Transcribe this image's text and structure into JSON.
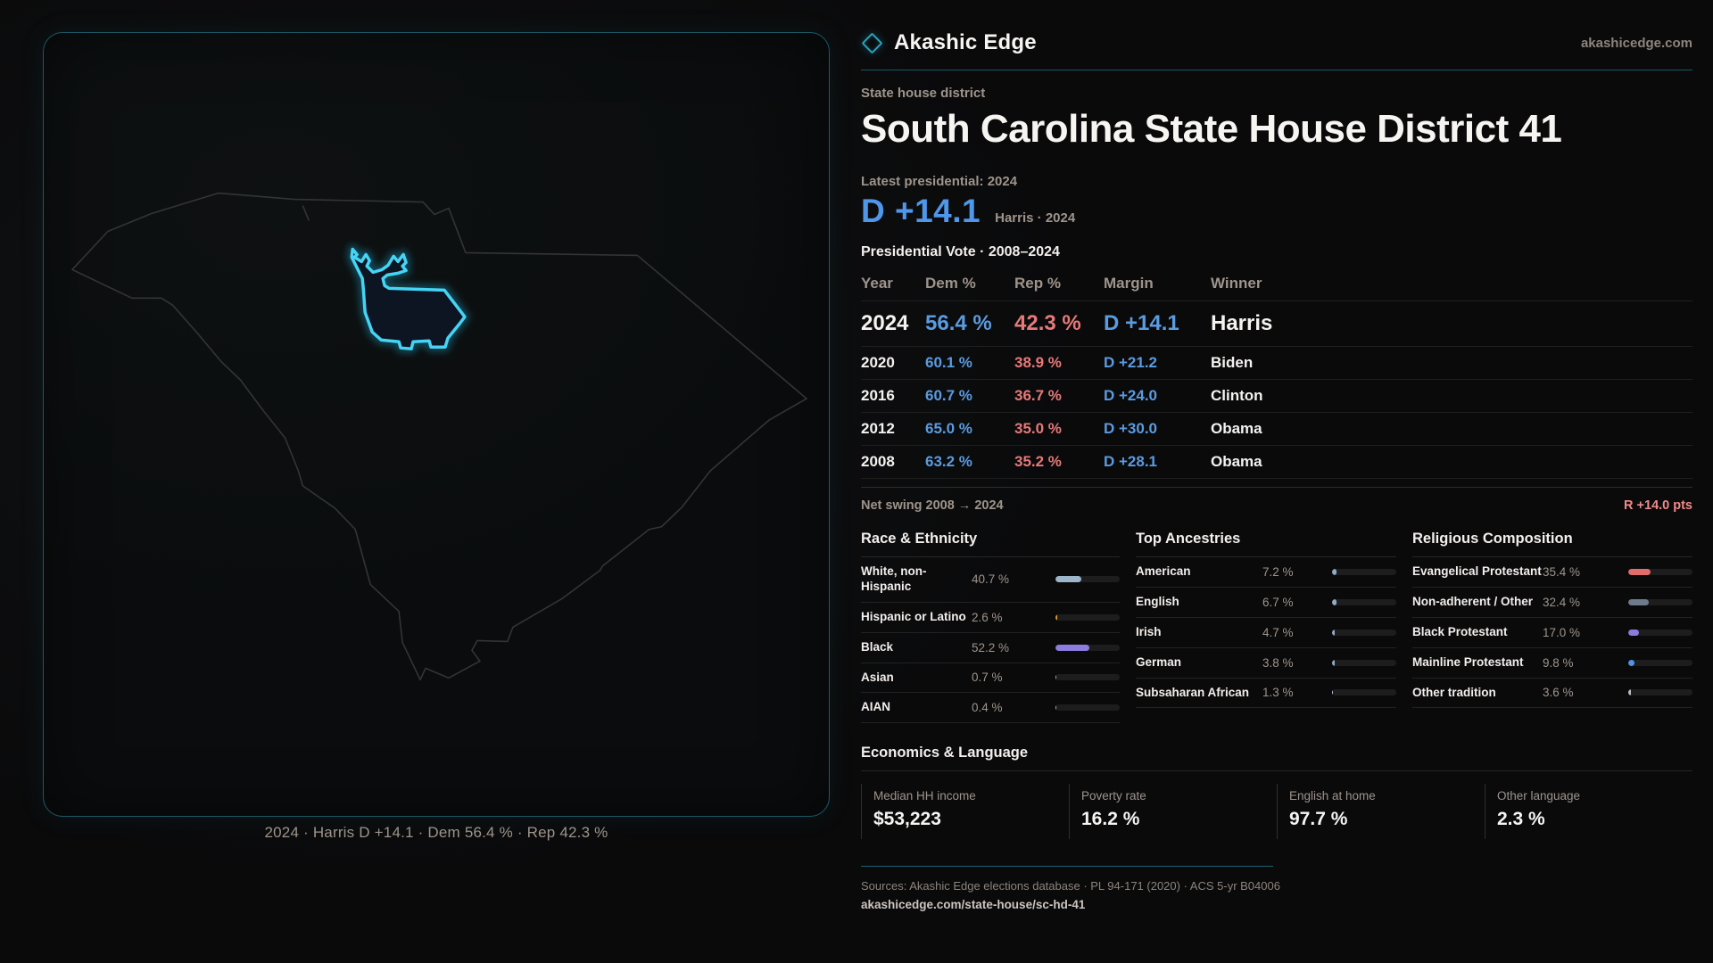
{
  "colors": {
    "background": "#0a0a0b",
    "accent_teal": "#2aa3bf",
    "district_cyan": "#45d4f5",
    "dem_blue": "#4e97ea",
    "rep_red": "#e77979",
    "swing_red": "#f08a8a",
    "text_muted": "#9e948b"
  },
  "brand": {
    "name": "Akashic Edge",
    "site": "akashicedge.com",
    "logo_icon": "diamond-outline-icon"
  },
  "header": {
    "kicker": "State house district",
    "title": "South Carolina State House District 41"
  },
  "latest": {
    "label": "Latest presidential: 2024",
    "margin": "D +14.1",
    "detail": "Harris · 2024"
  },
  "table": {
    "title": "Presidential Vote · 2008–2024",
    "columns": [
      "Year",
      "Dem %",
      "Rep %",
      "Margin",
      "Winner"
    ],
    "rows": [
      {
        "year": "2024",
        "dem": "56.4 %",
        "rep": "42.3 %",
        "margin": "D +14.1",
        "winner": "Harris",
        "featured": true
      },
      {
        "year": "2020",
        "dem": "60.1 %",
        "rep": "38.9 %",
        "margin": "D +21.2",
        "winner": "Biden"
      },
      {
        "year": "2016",
        "dem": "60.7 %",
        "rep": "36.7 %",
        "margin": "D +24.0",
        "winner": "Clinton"
      },
      {
        "year": "2012",
        "dem": "65.0 %",
        "rep": "35.0 %",
        "margin": "D +30.0",
        "winner": "Obama"
      },
      {
        "year": "2008",
        "dem": "63.2 %",
        "rep": "35.2 %",
        "margin": "D +28.1",
        "winner": "Obama"
      }
    ],
    "net_swing_label": "Net swing 2008 → 2024",
    "net_swing_value": "R +14.0 pts"
  },
  "demographics": {
    "race": {
      "title": "Race & Ethnicity",
      "rows": [
        {
          "label": "White, non-Hispanic",
          "display": "40.7 %",
          "value": 40.7,
          "color": "#9db5c9"
        },
        {
          "label": "Hispanic or Latino",
          "display": "2.6 %",
          "value": 2.6,
          "color": "#e09b2d"
        },
        {
          "label": "Black",
          "display": "52.2 %",
          "value": 52.2,
          "color": "#8d7ce0"
        },
        {
          "label": "Asian",
          "display": "0.7 %",
          "value": 0.7,
          "color": "#9db5c9"
        },
        {
          "label": "AIAN",
          "display": "0.4 %",
          "value": 0.4,
          "color": "#9db5c9"
        }
      ]
    },
    "ancestry": {
      "title": "Top Ancestries",
      "rows": [
        {
          "label": "American",
          "display": "7.2 %",
          "value": 7.2,
          "color": "#8fa9c6"
        },
        {
          "label": "English",
          "display": "6.7 %",
          "value": 6.7,
          "color": "#8fa9c6"
        },
        {
          "label": "Irish",
          "display": "4.7 %",
          "value": 4.7,
          "color": "#8fa9c6"
        },
        {
          "label": "German",
          "display": "3.8 %",
          "value": 3.8,
          "color": "#8fa9c6"
        },
        {
          "label": "Subsaharan African",
          "display": "1.3 %",
          "value": 1.3,
          "color": "#b8c4e8"
        }
      ]
    },
    "religion": {
      "title": "Religious Composition",
      "rows": [
        {
          "label": "Evangelical Protestant",
          "display": "35.4 %",
          "value": 35.4,
          "color": "#e06c6c"
        },
        {
          "label": "Non-adherent / Other",
          "display": "32.4 %",
          "value": 32.4,
          "color": "#6e7a8e"
        },
        {
          "label": "Black Protestant",
          "display": "17.0 %",
          "value": 17.0,
          "color": "#8d7ce0"
        },
        {
          "label": "Mainline Protestant",
          "display": "9.8 %",
          "value": 9.8,
          "color": "#4f94e8"
        },
        {
          "label": "Other tradition",
          "display": "3.6 %",
          "value": 3.6,
          "color": "#b8bcc4"
        }
      ]
    }
  },
  "economics": {
    "title": "Economics & Language",
    "stats": [
      {
        "label": "Median HH income",
        "value": "$53,223"
      },
      {
        "label": "Poverty rate",
        "value": "16.2 %"
      },
      {
        "label": "English at home",
        "value": "97.7 %"
      },
      {
        "label": "Other language",
        "value": "2.3 %"
      }
    ]
  },
  "map": {
    "caption": "2024 · Harris D +14.1 · Dem 56.4 % · Rep 42.3 %",
    "highlight_name": "district-41-shape"
  },
  "footer": {
    "sources": "Sources: Akashic Edge elections database · PL 94-171 (2020) · ACS 5-yr B04006",
    "url": "akashicedge.com/state-house/sc-hd-41"
  },
  "chart_data": [
    {
      "type": "table",
      "title": "Presidential Vote · 2008–2024",
      "columns": [
        "Year",
        "Dem %",
        "Rep %",
        "Margin",
        "Winner"
      ],
      "rows": [
        [
          2024,
          56.4,
          42.3,
          "D +14.1",
          "Harris"
        ],
        [
          2020,
          60.1,
          38.9,
          "D +21.2",
          "Biden"
        ],
        [
          2016,
          60.7,
          36.7,
          "D +24.0",
          "Clinton"
        ],
        [
          2012,
          65.0,
          35.0,
          "D +30.0",
          "Obama"
        ],
        [
          2008,
          63.2,
          35.2,
          "D +28.1",
          "Obama"
        ]
      ],
      "annotation": "Net swing 2008 → 2024: R +14.0 pts"
    },
    {
      "type": "bar",
      "title": "Race & Ethnicity",
      "categories": [
        "White, non-Hispanic",
        "Hispanic or Latino",
        "Black",
        "Asian",
        "AIAN"
      ],
      "values": [
        40.7,
        2.6,
        52.2,
        0.7,
        0.4
      ],
      "xlim": [
        0,
        100
      ],
      "unit": "%"
    },
    {
      "type": "bar",
      "title": "Top Ancestries",
      "categories": [
        "American",
        "English",
        "Irish",
        "German",
        "Subsaharan African"
      ],
      "values": [
        7.2,
        6.7,
        4.7,
        3.8,
        1.3
      ],
      "xlim": [
        0,
        100
      ],
      "unit": "%"
    },
    {
      "type": "bar",
      "title": "Religious Composition",
      "categories": [
        "Evangelical Protestant",
        "Non-adherent / Other",
        "Black Protestant",
        "Mainline Protestant",
        "Other tradition"
      ],
      "values": [
        35.4,
        32.4,
        17.0,
        9.8,
        3.6
      ],
      "xlim": [
        0,
        100
      ],
      "unit": "%"
    },
    {
      "type": "bar",
      "title": "Economics & Language",
      "categories": [
        "Median HH income",
        "Poverty rate",
        "English at home",
        "Other language"
      ],
      "values": [
        53223,
        16.2,
        97.7,
        2.3
      ],
      "units": [
        "$",
        "%",
        "%",
        "%"
      ]
    }
  ]
}
